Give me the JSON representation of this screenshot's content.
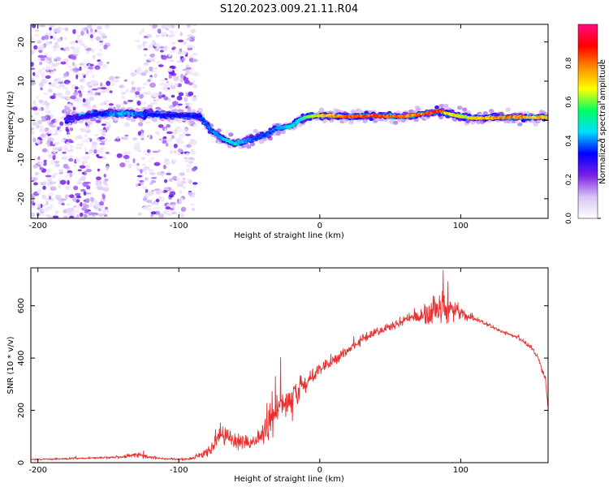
{
  "title": "S120.2023.009.21.11.R04",
  "chart_data": [
    {
      "type": "heatmap",
      "xlabel": "Height of straight line (km)",
      "ylabel": "Frequency (Hz)",
      "xlim": [
        -205,
        162
      ],
      "ylim": [
        -25,
        24.5
      ],
      "x_ticks": [
        -200,
        -100,
        0,
        100
      ],
      "y_ticks": [
        -20,
        -10,
        0,
        10,
        20
      ],
      "colorbar": {
        "label": "Normalized spectral amplitude",
        "range": [
          0,
          1
        ],
        "ticks": [
          "0.0",
          "0.2",
          "0.4",
          "0.6",
          "0.8"
        ],
        "tick_values": [
          0.0,
          0.2,
          0.4,
          0.6,
          0.8
        ],
        "colors": [
          "#ffffff",
          "#d8c2f5",
          "#7a1ee6",
          "#0000ff",
          "#00dcff",
          "#00ff64",
          "#ffff00",
          "#ff8c00",
          "#ff0000",
          "#ff0a82"
        ]
      },
      "ridge": {
        "name": "",
        "x": [
          -180,
          -160,
          -140,
          -120,
          -100,
          -85,
          -78,
          -70,
          -60,
          -50,
          -40,
          -30,
          -20,
          -15,
          -10,
          0,
          20,
          40,
          60,
          70,
          80,
          85,
          90,
          100,
          110,
          130,
          162
        ],
        "y": [
          0.2,
          1.5,
          1.8,
          1.5,
          1.2,
          1.0,
          -2.0,
          -4.5,
          -6.0,
          -5.0,
          -4.0,
          -2.0,
          -1.5,
          0.0,
          0.8,
          1.3,
          1.0,
          1.2,
          1.0,
          1.5,
          2.0,
          2.5,
          1.8,
          1.0,
          0.5,
          0.8,
          0.8
        ],
        "amplitude": [
          0.25,
          0.3,
          0.45,
          0.35,
          0.3,
          0.35,
          0.4,
          0.45,
          0.5,
          0.4,
          0.35,
          0.4,
          0.5,
          0.45,
          0.6,
          0.7,
          0.85,
          0.85,
          0.8,
          0.8,
          0.9,
          0.9,
          0.75,
          0.65,
          0.7,
          0.8,
          0.75
        ]
      },
      "noise_regions": [
        {
          "x": [
            -205,
            -150
          ],
          "y": [
            -25,
            24.5
          ],
          "density": 0.7
        },
        {
          "x": [
            -130,
            -88
          ],
          "y": [
            -25,
            24.5
          ],
          "density": 0.6
        },
        {
          "x": [
            -150,
            -130
          ],
          "y": [
            -12,
            12
          ],
          "density": 0.3
        }
      ]
    },
    {
      "type": "line",
      "xlabel": "Height of straight line (km)",
      "ylabel": "SNR (10 * v/v)",
      "xlim": [
        -205,
        162
      ],
      "ylim": [
        0,
        745
      ],
      "x_ticks": [
        -200,
        -100,
        0,
        100
      ],
      "y_ticks": [
        0,
        200,
        400,
        600
      ],
      "color": "#e83030",
      "series": [
        {
          "name": "",
          "x": [
            -205,
            -180,
            -160,
            -140,
            -130,
            -120,
            -100,
            -90,
            -80,
            -75,
            -70,
            -65,
            -60,
            -55,
            -50,
            -45,
            -40,
            -35,
            -30,
            -25,
            -20,
            -15,
            -10,
            -5,
            0,
            10,
            20,
            30,
            40,
            50,
            60,
            70,
            80,
            85,
            90,
            95,
            100,
            110,
            120,
            130,
            140,
            150,
            155,
            160,
            162
          ],
          "y": [
            12,
            15,
            18,
            22,
            30,
            20,
            12,
            18,
            35,
            70,
            100,
            95,
            80,
            85,
            70,
            90,
            110,
            160,
            210,
            230,
            240,
            270,
            300,
            330,
            360,
            390,
            430,
            470,
            500,
            520,
            545,
            560,
            575,
            590,
            595,
            585,
            570,
            550,
            525,
            500,
            480,
            440,
            400,
            320,
            220
          ],
          "noise_amplitude": [
            5,
            5,
            6,
            8,
            15,
            8,
            5,
            10,
            30,
            50,
            45,
            45,
            40,
            40,
            35,
            45,
            60,
            110,
            130,
            100,
            110,
            70,
            45,
            40,
            35,
            30,
            28,
            25,
            25,
            25,
            28,
            40,
            70,
            90,
            90,
            60,
            40,
            15,
            10,
            10,
            12,
            12,
            15,
            20,
            40
          ]
        }
      ]
    }
  ]
}
